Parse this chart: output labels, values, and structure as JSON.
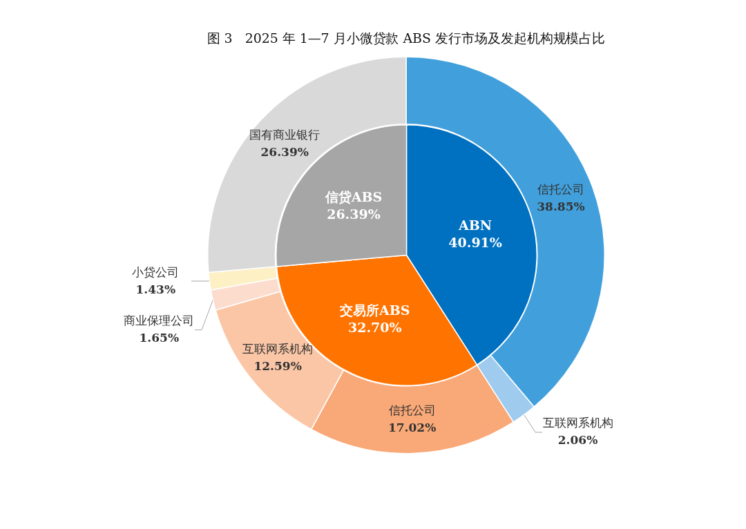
{
  "chart_data": [
    {
      "type": "donut",
      "title": "图 3   2025 年 1—7 月小微贷款 ABS 发行市场及发起机构规模占比",
      "legend": false,
      "data_labels": true,
      "categories": [
        "信托公司",
        "互联网系机构",
        "信托公司",
        "互联网系机构",
        "商业保理公司",
        "小贷公司",
        "国有商业银行"
      ],
      "values": [
        38.85,
        2.06,
        17.02,
        12.59,
        1.65,
        1.43,
        26.39
      ],
      "value_labels": [
        "38.85%",
        "2.06%",
        "17.02%",
        "12.59%",
        "1.65%",
        "1.43%",
        "26.39%"
      ],
      "colors": [
        "#41a0dc",
        "#9ecbee",
        "#f9a877",
        "#fbc6a6",
        "#fcdccd",
        "#fdf0c4",
        "#d9d9d9"
      ]
    },
    {
      "type": "pie",
      "legend": false,
      "data_labels": true,
      "categories": [
        "ABN",
        "交易所ABS",
        "信贷ABS"
      ],
      "values": [
        40.91,
        32.7,
        26.39
      ],
      "value_labels": [
        "40.91%",
        "32.70%",
        "26.39%"
      ],
      "colors": [
        "#0070c0",
        "#ff7300",
        "#a6a6a6"
      ]
    }
  ]
}
